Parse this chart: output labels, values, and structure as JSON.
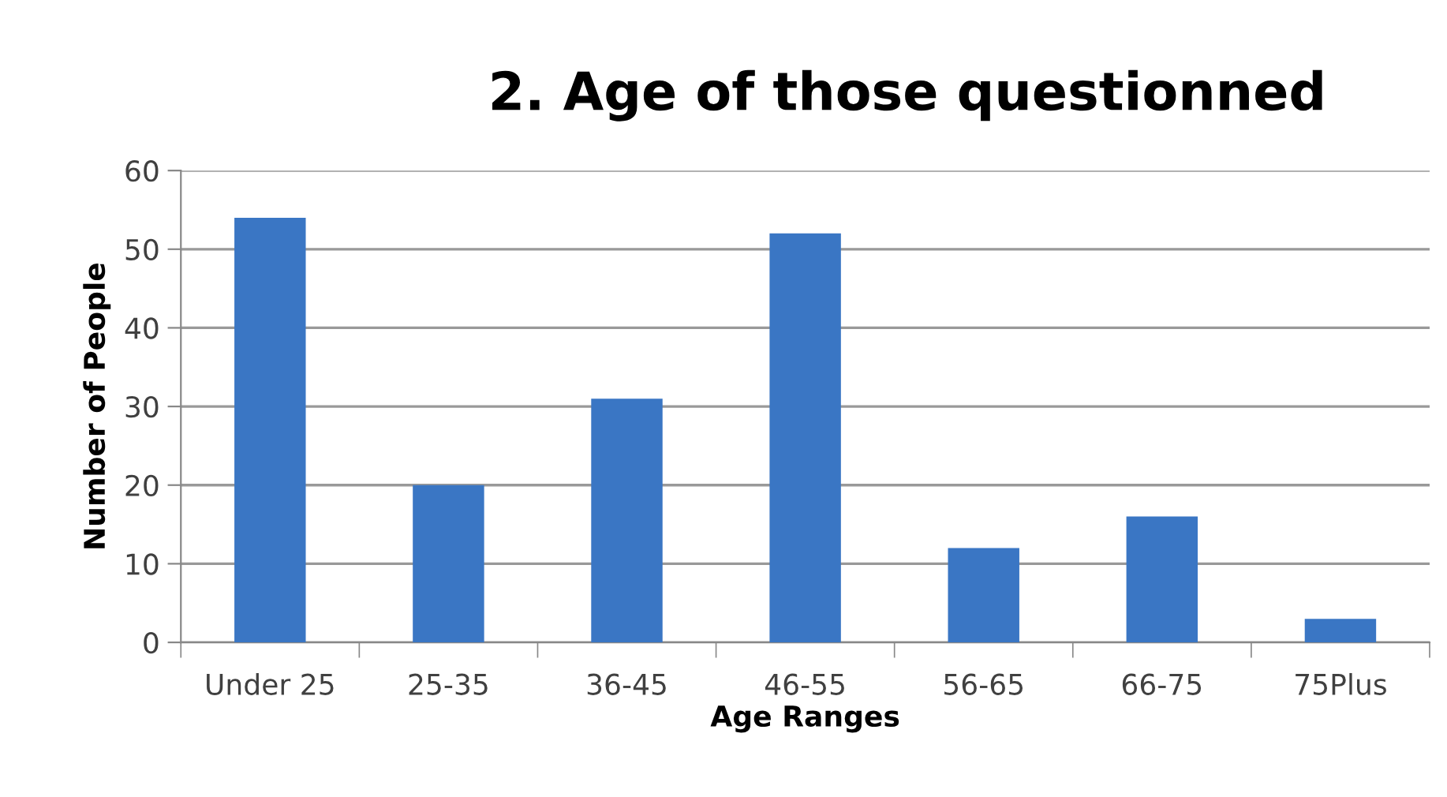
{
  "chart_data": {
    "type": "bar",
    "title": "2. Age of those questionned",
    "xlabel": "Age Ranges",
    "ylabel": "Number of People",
    "categories": [
      "Under 25",
      "25-35",
      "36-45",
      "46-55",
      "56-65",
      "66-75",
      "75Plus"
    ],
    "values": [
      54,
      20,
      31,
      52,
      12,
      16,
      3
    ],
    "color": "#3a76c4",
    "ylim": [
      0,
      60
    ],
    "yticks": [
      0,
      10,
      20,
      30,
      40,
      50,
      60
    ],
    "grid": "y",
    "legend": false
  }
}
